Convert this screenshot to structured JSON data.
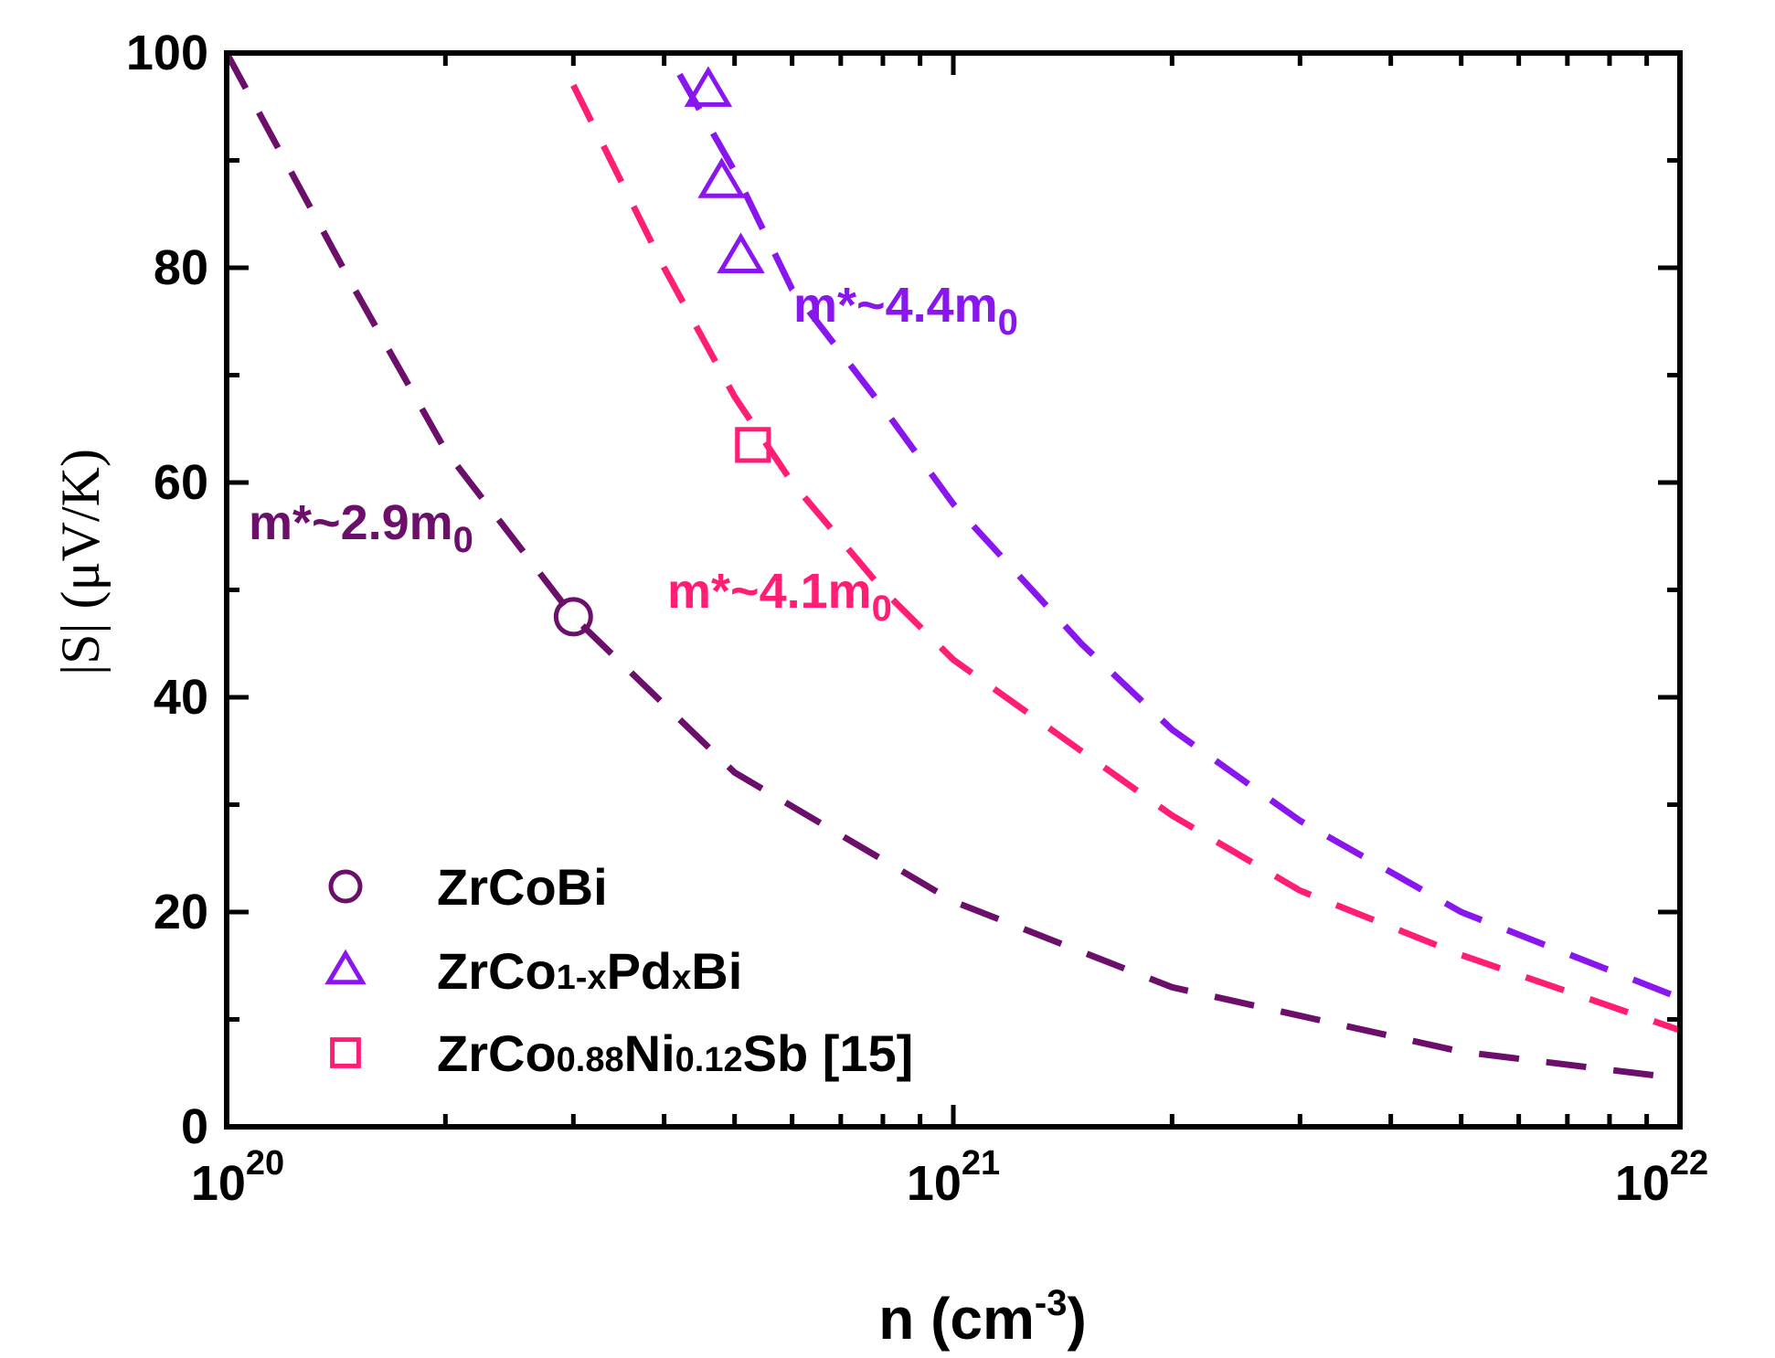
{
  "chart_data": {
    "type": "scatter",
    "xscale": "log",
    "xlim": [
      1e+20,
      1e+22
    ],
    "ylim": [
      0,
      100
    ],
    "xlabel": {
      "base": "n (cm",
      "sup": "-3",
      "tail": ")"
    },
    "ylabel": "|S| (μV/K)",
    "yticks": [
      0,
      20,
      40,
      60,
      80,
      100
    ],
    "xtick_labels": [
      {
        "value": 1e+20,
        "base": "10",
        "exp": "20"
      },
      {
        "value": 1e+21,
        "base": "10",
        "exp": "21"
      },
      {
        "value": 1e+22,
        "base": "10",
        "exp": "22"
      }
    ],
    "grid": false,
    "legend_position": "bottom-left",
    "series": [
      {
        "name": "ZrCoBi",
        "name_parts": [
          {
            "t": "ZrCoBi",
            "small": false
          }
        ],
        "marker": "circle",
        "color": "#6b0f6b",
        "points": [
          [
            3e+20,
            47.5
          ]
        ],
        "fit_label": "m*~2.9m",
        "fit_label_sub": "0",
        "fit": [
          [
            1e+20,
            100
          ],
          [
            1.5e+20,
            78
          ],
          [
            2e+20,
            63
          ],
          [
            3e+20,
            47.5
          ],
          [
            5e+20,
            33
          ],
          [
            1e+21,
            21
          ],
          [
            2e+21,
            13
          ],
          [
            5e+21,
            7
          ],
          [
            1e+22,
            4.5
          ]
        ]
      },
      {
        "name": "ZrCo1-xPdxBi",
        "name_parts": [
          {
            "t": "ZrCo",
            "small": false
          },
          {
            "t": "1-x",
            "small": true
          },
          {
            "t": "Pd",
            "small": false
          },
          {
            "t": "x",
            "small": true
          },
          {
            "t": "Bi",
            "small": false
          }
        ],
        "marker": "triangle",
        "color": "#8a16ee",
        "points": [
          [
            4.6e+20,
            96.5
          ],
          [
            4.8e+20,
            88
          ],
          [
            5.1e+20,
            81
          ]
        ],
        "fit_label": "m*~4.4m",
        "fit_label_sub": "0",
        "fit": [
          [
            4.2e+20,
            98
          ],
          [
            5e+20,
            89
          ],
          [
            6e+20,
            78
          ],
          [
            8e+20,
            67
          ],
          [
            1e+21,
            58
          ],
          [
            1.5e+21,
            45
          ],
          [
            2e+21,
            37
          ],
          [
            3e+21,
            28.5
          ],
          [
            5e+21,
            20
          ],
          [
            1e+22,
            12
          ]
        ]
      },
      {
        "name": "ZrCo0.88Ni0.12Sb [15]",
        "name_parts": [
          {
            "t": "ZrCo",
            "small": false
          },
          {
            "t": "0.88",
            "small": true
          },
          {
            "t": "Ni",
            "small": false
          },
          {
            "t": "0.12",
            "small": true
          },
          {
            "t": "Sb [15]",
            "small": false
          }
        ],
        "marker": "square",
        "color": "#ff1e74",
        "points": [
          [
            5.3e+20,
            63.5
          ]
        ],
        "fit_label": "m*~4.1m",
        "fit_label_sub": "0",
        "fit": [
          [
            3e+20,
            97
          ],
          [
            4e+20,
            80
          ],
          [
            5e+20,
            68
          ],
          [
            6e+20,
            60
          ],
          [
            8e+20,
            50
          ],
          [
            1e+21,
            43.5
          ],
          [
            1.5e+21,
            35
          ],
          [
            2e+21,
            29
          ],
          [
            3e+21,
            22
          ],
          [
            5e+21,
            16
          ],
          [
            1e+22,
            9
          ]
        ]
      }
    ]
  }
}
